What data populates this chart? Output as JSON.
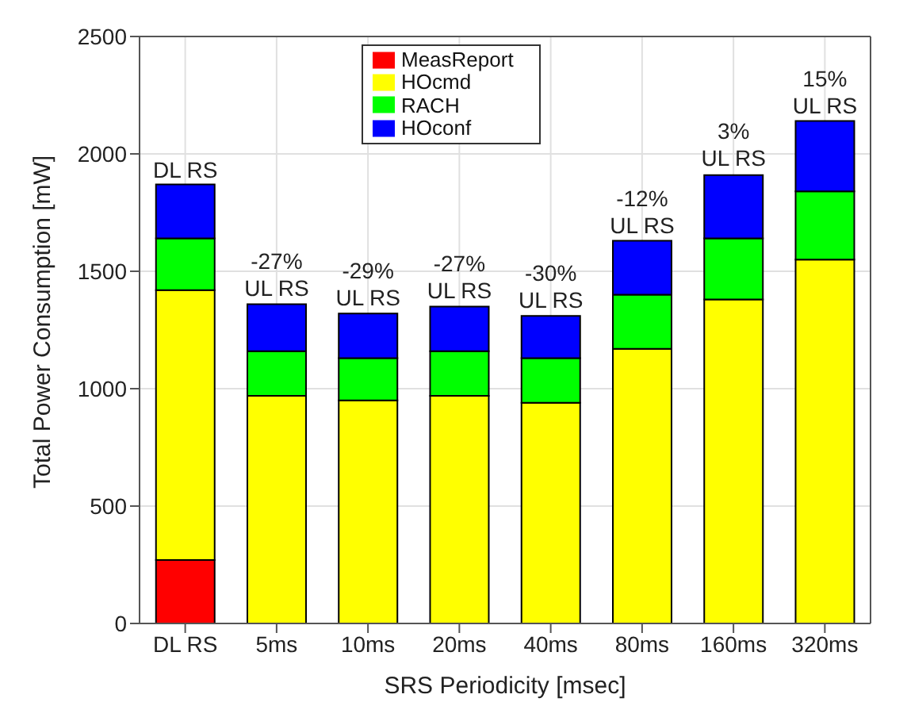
{
  "chart_data": {
    "type": "bar",
    "stacked": true,
    "xlabel": "SRS Periodicity [msec]",
    "ylabel": "Total Power Consumption [mW]",
    "categories": [
      "DL RS",
      "5ms",
      "10ms",
      "20ms",
      "40ms",
      "80ms",
      "160ms",
      "320ms"
    ],
    "series": [
      {
        "name": "MeasReport",
        "color": "#ff0000",
        "values": [
          270,
          null,
          null,
          null,
          null,
          null,
          null,
          null
        ]
      },
      {
        "name": "HOcmd",
        "color": "#ffff00",
        "values": [
          1150,
          970,
          950,
          970,
          940,
          1170,
          1380,
          1550
        ]
      },
      {
        "name": "RACH",
        "color": "#00ff00",
        "values": [
          220,
          190,
          180,
          190,
          190,
          230,
          260,
          290
        ]
      },
      {
        "name": "HOconf",
        "color": "#0000ff",
        "values": [
          230,
          200,
          190,
          190,
          180,
          230,
          270,
          300
        ]
      }
    ],
    "ylim": [
      0,
      2500
    ],
    "yticks": [
      0,
      500,
      1000,
      1500,
      2000,
      2500
    ],
    "grid": true,
    "legend": "top",
    "annotations": [
      {
        "text": "DL RS",
        "x": "DL RS",
        "y": 1865
      },
      {
        "text": "-27%\nUL RS",
        "x": "5ms",
        "y": 1360
      },
      {
        "text": "-29%\nUL RS",
        "x": "10ms",
        "y": 1320
      },
      {
        "text": "-27%\nUL RS",
        "x": "20ms",
        "y": 1350
      },
      {
        "text": "-30%\nUL RS",
        "x": "40ms",
        "y": 1310
      },
      {
        "text": "-12%\nUL RS",
        "x": "80ms",
        "y": 1630
      },
      {
        "text": "3%\nUL RS",
        "x": "160ms",
        "y": 1915
      },
      {
        "text": "15%\nUL RS",
        "x": "320ms",
        "y": 2140
      }
    ]
  }
}
